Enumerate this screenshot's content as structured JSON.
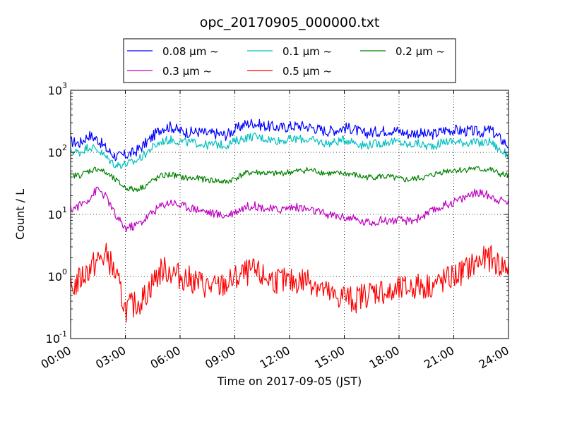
{
  "chart_data": {
    "type": "line",
    "title": "opc_20170905_000000.txt",
    "xlabel": "Time on 2017-09-05 (JST)",
    "ylabel": "Count / L",
    "x_unit": "hours",
    "xlim": [
      0,
      24
    ],
    "ylim": [
      0.1,
      1000
    ],
    "yscale": "log",
    "grid": true,
    "legend": "top (above plot)",
    "x_ticks": [
      {
        "value": 0,
        "label": "00:00"
      },
      {
        "value": 3,
        "label": "03:00"
      },
      {
        "value": 6,
        "label": "06:00"
      },
      {
        "value": 9,
        "label": "09:00"
      },
      {
        "value": 12,
        "label": "12:00"
      },
      {
        "value": 15,
        "label": "15:00"
      },
      {
        "value": 18,
        "label": "18:00"
      },
      {
        "value": 21,
        "label": "21:00"
      },
      {
        "value": 24,
        "label": "24:00"
      }
    ],
    "y_ticks": [
      {
        "value": 0.1,
        "base": "10",
        "exp": "-1"
      },
      {
        "value": 1,
        "base": "10",
        "exp": "0"
      },
      {
        "value": 10,
        "base": "10",
        "exp": "1"
      },
      {
        "value": 100,
        "base": "10",
        "exp": "2"
      },
      {
        "value": 1000,
        "base": "10",
        "exp": "3"
      }
    ],
    "series": [
      {
        "name": "0.08 μm ~",
        "color": "#0000ff",
        "x": [
          0,
          0.5,
          1,
          1.5,
          2,
          2.5,
          3,
          3.5,
          4,
          4.5,
          5,
          5.5,
          6,
          6.5,
          7,
          7.5,
          8,
          8.5,
          9,
          9.5,
          10,
          10.5,
          11,
          11.5,
          12,
          12.5,
          13,
          13.5,
          14,
          14.5,
          15,
          15.5,
          16,
          16.5,
          17,
          17.5,
          18,
          18.5,
          19,
          19.5,
          20,
          20.5,
          21,
          21.5,
          22,
          22.5,
          23,
          23.5,
          24
        ],
        "y": [
          150,
          140,
          190,
          160,
          110,
          85,
          90,
          100,
          130,
          180,
          250,
          260,
          220,
          210,
          215,
          200,
          200,
          190,
          230,
          280,
          300,
          270,
          260,
          250,
          260,
          270,
          260,
          240,
          220,
          230,
          250,
          240,
          200,
          210,
          220,
          230,
          220,
          200,
          210,
          190,
          200,
          230,
          230,
          220,
          220,
          210,
          230,
          170,
          130
        ]
      },
      {
        "name": "0.1 μm ~",
        "color": "#00bfbf",
        "x": [
          0,
          0.5,
          1,
          1.5,
          2,
          2.5,
          3,
          3.5,
          4,
          4.5,
          5,
          5.5,
          6,
          6.5,
          7,
          7.5,
          8,
          8.5,
          9,
          9.5,
          10,
          10.5,
          11,
          11.5,
          12,
          12.5,
          13,
          13.5,
          14,
          14.5,
          15,
          15.5,
          16,
          16.5,
          17,
          17.5,
          18,
          18.5,
          19,
          19.5,
          20,
          20.5,
          21,
          21.5,
          22,
          22.5,
          23,
          23.5,
          24
        ],
        "y": [
          105,
          100,
          125,
          110,
          80,
          62,
          65,
          70,
          90,
          120,
          150,
          160,
          150,
          145,
          140,
          130,
          135,
          130,
          150,
          170,
          180,
          170,
          160,
          155,
          160,
          165,
          160,
          150,
          140,
          145,
          160,
          150,
          130,
          135,
          140,
          150,
          145,
          130,
          140,
          125,
          130,
          150,
          150,
          145,
          145,
          140,
          150,
          110,
          90
        ]
      },
      {
        "name": "0.2 μm ~",
        "color": "#008000",
        "x": [
          0,
          0.5,
          1,
          1.5,
          2,
          2.5,
          3,
          3.5,
          4,
          4.5,
          5,
          5.5,
          6,
          6.5,
          7,
          7.5,
          8,
          8.5,
          9,
          9.5,
          10,
          10.5,
          11,
          11.5,
          12,
          12.5,
          13,
          13.5,
          14,
          14.5,
          15,
          15.5,
          16,
          16.5,
          17,
          17.5,
          18,
          18.5,
          19,
          19.5,
          20,
          20.5,
          21,
          21.5,
          22,
          22.5,
          23,
          23.5,
          24
        ],
        "y": [
          42,
          43,
          50,
          55,
          45,
          35,
          27,
          25,
          28,
          35,
          42,
          44,
          40,
          38,
          38,
          36,
          35,
          33,
          38,
          45,
          48,
          47,
          45,
          46,
          48,
          50,
          52,
          50,
          46,
          45,
          46,
          44,
          40,
          40,
          41,
          40,
          37,
          36,
          38,
          40,
          45,
          50,
          52,
          52,
          55,
          53,
          53,
          45,
          42
        ]
      },
      {
        "name": "0.3 μm ~",
        "color": "#bf00bf",
        "x": [
          0,
          0.5,
          1,
          1.5,
          2,
          2.5,
          3,
          3.5,
          4,
          4.5,
          5,
          5.5,
          6,
          6.5,
          7,
          7.5,
          8,
          8.5,
          9,
          9.5,
          10,
          10.5,
          11,
          11.5,
          12,
          12.5,
          13,
          13.5,
          14,
          14.5,
          15,
          15.5,
          16,
          16.5,
          17,
          17.5,
          18,
          18.5,
          19,
          19.5,
          20,
          20.5,
          21,
          21.5,
          22,
          22.5,
          23,
          23.5,
          24
        ],
        "y": [
          12,
          14,
          18,
          26,
          18,
          9,
          6,
          6.5,
          8,
          11,
          14,
          16,
          14,
          13,
          12,
          11,
          10,
          9.5,
          11,
          13,
          14,
          13,
          12,
          12,
          13,
          13,
          12,
          11,
          10,
          9.5,
          9,
          8.5,
          7.5,
          7.5,
          8,
          8,
          8,
          7.8,
          8.5,
          10,
          12,
          14,
          16,
          18,
          22,
          22,
          20,
          17,
          16
        ]
      },
      {
        "name": "0.5 μm ~",
        "color": "#ff0000",
        "x": [
          0,
          0.5,
          1,
          1.5,
          2,
          2.5,
          3,
          3.5,
          4,
          4.5,
          5,
          5.5,
          6,
          6.5,
          7,
          7.5,
          8,
          8.5,
          9,
          9.5,
          10,
          10.5,
          11,
          11.5,
          12,
          12.5,
          13,
          13.5,
          14,
          14.5,
          15,
          15.5,
          16,
          16.5,
          17,
          17.5,
          18,
          18.5,
          19,
          19.5,
          20,
          20.5,
          21,
          21.5,
          22,
          22.5,
          23,
          23.5,
          24
        ],
        "y": [
          0.6,
          0.9,
          1.3,
          1.8,
          2.2,
          1.0,
          0.3,
          0.35,
          0.45,
          0.8,
          1.3,
          1.2,
          1.0,
          0.9,
          0.8,
          0.7,
          0.65,
          0.75,
          0.9,
          1.1,
          1.2,
          1.0,
          0.9,
          0.85,
          0.8,
          0.85,
          0.9,
          0.75,
          0.55,
          0.45,
          0.5,
          0.4,
          0.5,
          0.55,
          0.6,
          0.5,
          0.6,
          0.65,
          0.7,
          0.7,
          0.75,
          0.85,
          1.0,
          1.2,
          1.5,
          1.8,
          2.0,
          1.5,
          1.4
        ]
      }
    ]
  }
}
